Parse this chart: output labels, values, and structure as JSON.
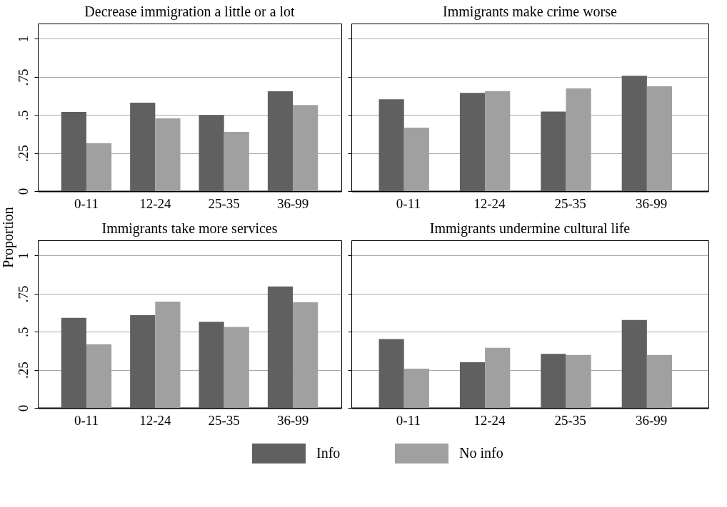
{
  "chart_data": [
    {
      "type": "bar",
      "title": "Decrease immigration a little or a lot",
      "ylabel": "Proportion",
      "categories": [
        "0-11",
        "12-24",
        "25-35",
        "36-99"
      ],
      "series": [
        {
          "name": "Info",
          "color": "#606060",
          "values": [
            0.52,
            0.58,
            0.5,
            0.655
          ]
        },
        {
          "name": "No info",
          "color": "#a0a0a0",
          "values": [
            0.315,
            0.477,
            0.389,
            0.565
          ]
        }
      ],
      "ylim": [
        0,
        1.1
      ],
      "yticks": [
        0,
        {
          "value": 0.25,
          "label": ".25"
        },
        {
          "value": 0.5,
          "label": ".5"
        },
        {
          "value": 0.75,
          "label": ".75"
        },
        1
      ],
      "grid": "y",
      "legend": "bottom"
    },
    {
      "type": "bar",
      "title": "Immigrants make crime worse",
      "categories": [
        "0-11",
        "12-24",
        "25-35",
        "36-99"
      ],
      "series": [
        {
          "color": "#606060",
          "values": [
            0.603,
            0.645,
            0.522,
            0.757
          ]
        },
        {
          "color": "#a0a0a0",
          "values": [
            0.417,
            0.657,
            0.674,
            0.688
          ]
        }
      ],
      "ylim": [
        0,
        1.1
      ],
      "yticks": [
        0,
        0.25,
        0.5,
        0.75,
        1
      ],
      "grid": "y",
      "tick_labels": "x"
    },
    {
      "type": "bar",
      "title": "Immigrants take more services",
      "categories": [
        "0-11",
        "12-24",
        "25-35",
        "36-99"
      ],
      "series": [
        {
          "color": "#606060",
          "values": [
            0.591,
            0.608,
            0.565,
            0.797
          ]
        },
        {
          "color": "#a0a0a0",
          "values": [
            0.418,
            0.698,
            0.531,
            0.694
          ]
        }
      ],
      "ylim": [
        0,
        1.1
      ],
      "yticks": [
        0,
        {
          "value": 0.25,
          "label": ".25"
        },
        {
          "value": 0.5,
          "label": ".5"
        },
        {
          "value": 0.75,
          "label": ".75"
        },
        1
      ],
      "grid": "y"
    },
    {
      "type": "bar",
      "title": "Immigrants undermine cultural life",
      "categories": [
        "0-11",
        "12-24",
        "25-35",
        "36-99"
      ],
      "series": [
        {
          "color": "#606060",
          "values": [
            0.452,
            0.3,
            0.354,
            0.577
          ]
        },
        {
          "color": "#a0a0a0",
          "values": [
            0.257,
            0.394,
            0.348,
            0.348
          ]
        }
      ],
      "ylim": [
        0,
        1.1
      ],
      "yticks": [
        0,
        0.25,
        0.5,
        0.75,
        1
      ],
      "grid": "y",
      "tick_labels": "x"
    }
  ]
}
